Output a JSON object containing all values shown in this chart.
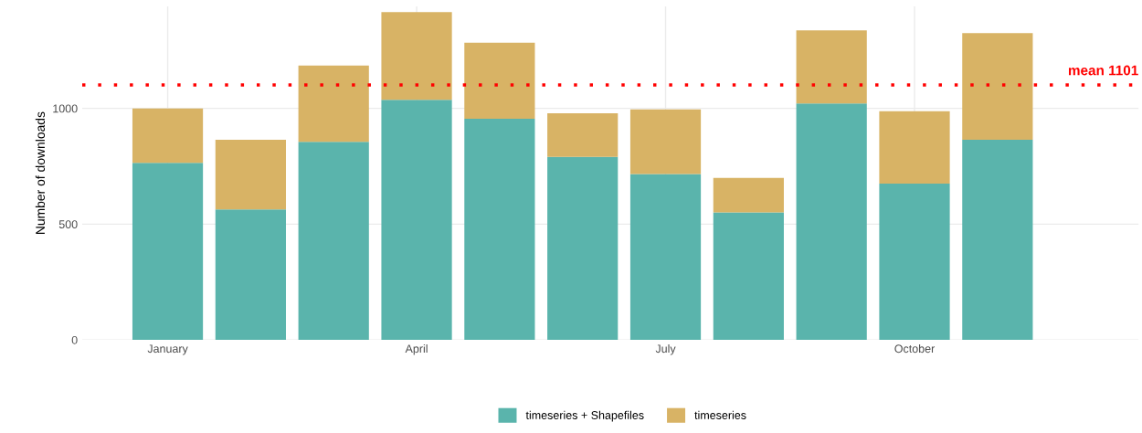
{
  "chart_data": {
    "type": "bar",
    "stacked": true,
    "categories": [
      "January",
      null,
      null,
      "April",
      null,
      null,
      "July",
      null,
      null,
      "October",
      null
    ],
    "ylabel": "Number of downloads",
    "series": [
      {
        "name": "timeseries + Shapefiles",
        "color": "#5ab4ac",
        "values": [
          765,
          564,
          856,
          1037,
          955,
          790,
          716,
          551,
          1021,
          675,
          864
        ]
      },
      {
        "name": "timeseries",
        "color": "#d8b365",
        "values": [
          235,
          300,
          329,
          379,
          329,
          189,
          280,
          149,
          316,
          313,
          461
        ]
      }
    ],
    "ylim": [
      0,
      1440
    ],
    "yticks": [
      0,
      500,
      1000
    ],
    "ref_lines": [
      {
        "axis": "y",
        "value": 1101,
        "label": "mean 1101",
        "color": "#ff0000",
        "line_style": "dotted"
      }
    ],
    "grid": true,
    "legend": "bottom"
  }
}
